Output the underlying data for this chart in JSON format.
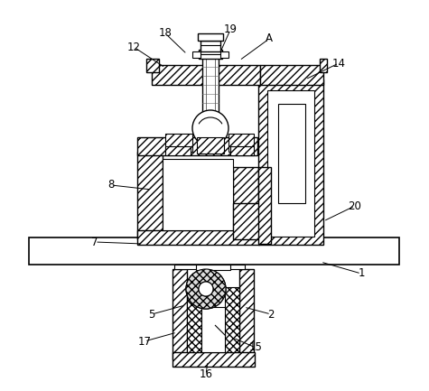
{
  "background_color": "#ffffff",
  "line_color": "#000000",
  "hatch_fwd": "////",
  "hatch_cross": "xxxx",
  "label_data": {
    "1": [
      400,
      303,
      355,
      290
    ],
    "2": [
      300,
      348,
      270,
      340
    ],
    "5": [
      168,
      348,
      205,
      338
    ],
    "7": [
      105,
      268,
      158,
      270
    ],
    "8": [
      123,
      205,
      168,
      210
    ],
    "12": [
      148,
      52,
      183,
      75
    ],
    "14": [
      375,
      70,
      338,
      88
    ],
    "15": [
      283,
      385,
      258,
      374
    ],
    "16": [
      228,
      415,
      230,
      400
    ],
    "17": [
      160,
      378,
      196,
      368
    ],
    "18": [
      183,
      37,
      207,
      60
    ],
    "19": [
      255,
      33,
      243,
      60
    ],
    "20": [
      393,
      228,
      358,
      245
    ],
    "A": [
      298,
      43,
      265,
      67
    ]
  }
}
